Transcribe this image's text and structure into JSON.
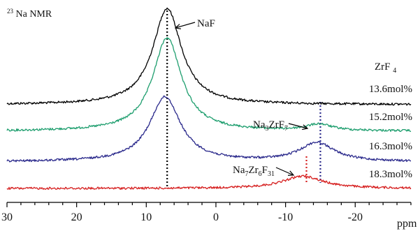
{
  "chart_data": {
    "type": "line",
    "nucleus": {
      "mass": "23",
      "label": "Na NMR"
    },
    "xlabel": "ppm",
    "xlim": [
      30,
      -28
    ],
    "x_reversed": true,
    "x_ticks": [
      30,
      20,
      10,
      0,
      -10,
      -20
    ],
    "x_tick_labels": [
      "30",
      "20",
      "10",
      "0",
      "-10",
      "-20"
    ],
    "legend_title": {
      "base": "ZrF",
      "sub": "4"
    },
    "series": [
      {
        "name": "13.6mol%",
        "color": "#000000",
        "peaks": [
          {
            "center": 7.0,
            "height": 1.0,
            "width": 2.5
          }
        ]
      },
      {
        "name": "15.2mol%",
        "color": "#1e9e6e",
        "peaks": [
          {
            "center": 7.0,
            "height": 0.88,
            "width": 2.5
          },
          {
            "center": -14.8,
            "height": 0.06,
            "width": 2.2
          }
        ]
      },
      {
        "name": "16.3mol%",
        "color": "#2b2a8c",
        "peaks": [
          {
            "center": 7.3,
            "height": 0.62,
            "width": 2.7
          },
          {
            "center": -14.5,
            "height": 0.18,
            "width": 3.0
          }
        ]
      },
      {
        "name": "18.3mol%",
        "color": "#d62020",
        "peaks": [
          {
            "center": -12.5,
            "height": 0.16,
            "width": 3.5
          }
        ]
      }
    ],
    "annotations": [
      {
        "id": "naf",
        "text": "NaF",
        "parts": [
          {
            "t": "NaF"
          }
        ]
      },
      {
        "id": "na3zrf7",
        "text": "Na3ZrF7",
        "parts": [
          {
            "t": "Na"
          },
          {
            "t": "3",
            "sub": true
          },
          {
            "t": "ZrF"
          },
          {
            "t": "7",
            "sub": true
          }
        ]
      },
      {
        "id": "na7zr6f31",
        "text": "Na7Zr6F31",
        "parts": [
          {
            "t": "Na"
          },
          {
            "t": "7",
            "sub": true
          },
          {
            "t": "Zr"
          },
          {
            "t": "6",
            "sub": true
          },
          {
            "t": "F"
          },
          {
            "t": "31",
            "sub": true
          }
        ]
      }
    ],
    "reference_lines": [
      {
        "x": 7.0,
        "color": "#000000"
      },
      {
        "x": -15.0,
        "color": "#2b2a8c"
      },
      {
        "x": -13.0,
        "color": "#d62020"
      }
    ]
  }
}
